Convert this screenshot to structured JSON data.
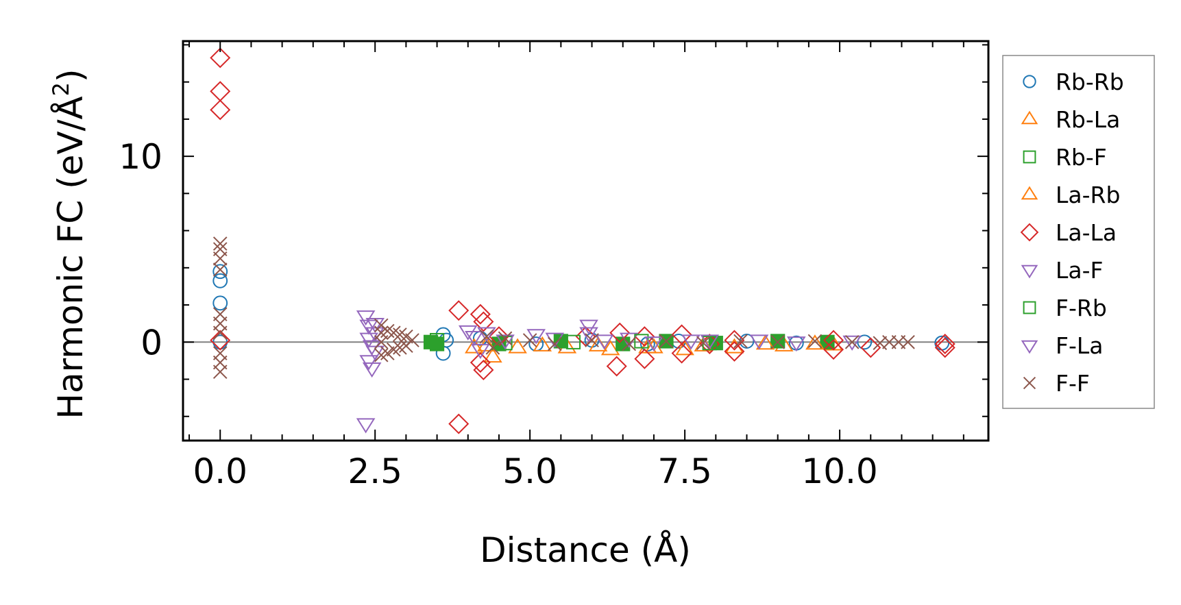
{
  "chart_data": {
    "type": "scatter",
    "xlabel": "Distance (Å)",
    "ylabel": "Harmonic FC (eV/Å²)",
    "ylabel_main": "Harmonic FC (eV/Å",
    "ylabel_sup": "2",
    "ylabel_close": ")",
    "xlim": [
      -0.6,
      12.4
    ],
    "ylim": [
      -5.3,
      16.2
    ],
    "xticks": [
      0.0,
      2.5,
      5.0,
      7.5,
      10.0
    ],
    "xtick_labels": [
      "0.0",
      "2.5",
      "5.0",
      "7.5",
      "10.0"
    ],
    "yticks": [
      0,
      10
    ],
    "ytick_labels": [
      "0",
      "10"
    ],
    "zero_line": true,
    "legend_position": "outside-right",
    "colors": {
      "blue": "#1f77b4",
      "orange": "#ff7f0e",
      "green": "#2ca02c",
      "red": "#d62728",
      "purple": "#9467bd",
      "brown": "#8c564b"
    },
    "series": [
      {
        "name": "Rb-Rb",
        "marker": "circle",
        "color": "#1f77b4",
        "points": [
          [
            0,
            3.8
          ],
          [
            0,
            3.3
          ],
          [
            0,
            2.1
          ],
          [
            0,
            0
          ],
          [
            3.6,
            0.4
          ],
          [
            3.6,
            -0.6
          ],
          [
            3.65,
            0.1
          ],
          [
            4.2,
            0.2
          ],
          [
            5.1,
            -0.1
          ],
          [
            6.0,
            0.1
          ],
          [
            6.9,
            -0.1
          ],
          [
            7.4,
            0.05
          ],
          [
            8.5,
            0.05
          ],
          [
            9.3,
            -0.05
          ],
          [
            10.4,
            0.0
          ],
          [
            11.65,
            -0.05
          ]
        ]
      },
      {
        "name": "Rb-La",
        "marker": "triangle-up",
        "color": "#ff7f0e",
        "points": [
          [
            4.1,
            -0.3
          ],
          [
            4.4,
            -0.8
          ],
          [
            4.8,
            -0.3
          ],
          [
            5.6,
            -0.3
          ],
          [
            6.3,
            -0.4
          ],
          [
            7.0,
            -0.3
          ],
          [
            7.5,
            -0.4
          ],
          [
            8.3,
            -0.3
          ],
          [
            9.1,
            -0.2
          ],
          [
            9.9,
            -0.15
          ]
        ]
      },
      {
        "name": "Rb-F",
        "marker": "square-filled",
        "color": "#2ca02c",
        "points": [
          [
            3.4,
            0.0
          ],
          [
            3.5,
            -0.1
          ],
          [
            4.5,
            -0.1
          ],
          [
            5.5,
            0.05
          ],
          [
            6.5,
            -0.1
          ],
          [
            7.2,
            0.05
          ],
          [
            8.0,
            -0.05
          ],
          [
            9.0,
            0.05
          ],
          [
            9.8,
            0.0
          ]
        ]
      },
      {
        "name": "La-Rb",
        "marker": "triangle-up",
        "color": "#ff7f0e",
        "points": [
          [
            4.3,
            -0.2
          ],
          [
            5.2,
            -0.2
          ],
          [
            6.1,
            -0.2
          ],
          [
            6.9,
            -0.3
          ],
          [
            7.8,
            -0.2
          ],
          [
            8.8,
            -0.1
          ],
          [
            9.6,
            -0.1
          ]
        ]
      },
      {
        "name": "La-La",
        "marker": "diamond",
        "color": "#d62728",
        "points": [
          [
            0,
            15.3
          ],
          [
            0,
            13.5
          ],
          [
            0,
            12.5
          ],
          [
            0,
            0.1
          ],
          [
            3.85,
            1.7
          ],
          [
            4.2,
            1.5
          ],
          [
            4.25,
            1.1
          ],
          [
            4.2,
            -1.1
          ],
          [
            4.25,
            -1.5
          ],
          [
            3.85,
            -4.4
          ],
          [
            4.5,
            0.3
          ],
          [
            5.9,
            0.3
          ],
          [
            6.45,
            0.5
          ],
          [
            6.4,
            -1.3
          ],
          [
            6.85,
            0.3
          ],
          [
            6.85,
            -0.9
          ],
          [
            7.45,
            0.4
          ],
          [
            7.45,
            -0.6
          ],
          [
            7.9,
            -0.1
          ],
          [
            8.3,
            -0.5
          ],
          [
            8.3,
            0.1
          ],
          [
            9.9,
            0.1
          ],
          [
            9.9,
            -0.4
          ],
          [
            10.5,
            -0.3
          ],
          [
            11.7,
            -0.1
          ],
          [
            11.7,
            -0.3
          ]
        ]
      },
      {
        "name": "La-F",
        "marker": "triangle-down",
        "color": "#9467bd",
        "points": [
          [
            2.35,
            1.4
          ],
          [
            2.4,
            0.9
          ],
          [
            2.4,
            -1.0
          ],
          [
            2.45,
            -1.4
          ],
          [
            2.5,
            0.5
          ],
          [
            2.5,
            -0.5
          ],
          [
            2.35,
            -4.4
          ],
          [
            4.0,
            0.6
          ],
          [
            4.1,
            0.3
          ],
          [
            4.3,
            0.5
          ],
          [
            5.1,
            0.4
          ],
          [
            5.95,
            0.9
          ],
          [
            5.95,
            0.5
          ],
          [
            6.6,
            0.2
          ],
          [
            7.6,
            0.1
          ],
          [
            8.7,
            0.1
          ]
        ]
      },
      {
        "name": "F-Rb",
        "marker": "square",
        "color": "#2ca02c",
        "points": [
          [
            3.5,
            0.1
          ],
          [
            4.6,
            -0.05
          ],
          [
            5.7,
            0.0
          ],
          [
            6.8,
            0.05
          ],
          [
            7.9,
            -0.05
          ]
        ]
      },
      {
        "name": "F-La",
        "marker": "triangle-down",
        "color": "#9467bd",
        "points": [
          [
            2.4,
            0.2
          ],
          [
            2.45,
            -0.2
          ],
          [
            2.5,
            1.0
          ],
          [
            4.2,
            -0.4
          ],
          [
            4.6,
            0.1
          ],
          [
            5.4,
            0.2
          ],
          [
            6.2,
            0.1
          ],
          [
            7.0,
            0.0
          ],
          [
            7.9,
            0.1
          ],
          [
            9.3,
            0.0
          ],
          [
            10.2,
            0.05
          ]
        ]
      },
      {
        "name": "F-F",
        "marker": "x",
        "color": "#8c564b",
        "points": [
          [
            0,
            5.3
          ],
          [
            0,
            5.0
          ],
          [
            0,
            4.5
          ],
          [
            0,
            3.9
          ],
          [
            0,
            1.5
          ],
          [
            0,
            1.0
          ],
          [
            0,
            0.5
          ],
          [
            0,
            -0.6
          ],
          [
            0,
            -1.1
          ],
          [
            0,
            -1.6
          ],
          [
            2.6,
            0.9
          ],
          [
            2.6,
            0.5
          ],
          [
            2.6,
            0.0
          ],
          [
            2.6,
            -0.7
          ],
          [
            2.7,
            0.6
          ],
          [
            2.7,
            -0.6
          ],
          [
            2.8,
            0.5
          ],
          [
            2.8,
            -0.4
          ],
          [
            2.9,
            0.4
          ],
          [
            2.9,
            -0.3
          ],
          [
            3.0,
            0.3
          ],
          [
            3.0,
            -0.2
          ],
          [
            3.1,
            0.1
          ],
          [
            4.3,
            0.3
          ],
          [
            4.4,
            -0.3
          ],
          [
            4.6,
            0.2
          ],
          [
            5.0,
            0.1
          ],
          [
            5.4,
            -0.1
          ],
          [
            6.0,
            0.1
          ],
          [
            6.6,
            -0.1
          ],
          [
            7.2,
            0.05
          ],
          [
            7.8,
            -0.05
          ],
          [
            8.4,
            0.05
          ],
          [
            9.0,
            0.0
          ],
          [
            9.6,
            0.05
          ],
          [
            10.2,
            0.0
          ],
          [
            10.65,
            -0.05
          ],
          [
            10.8,
            0.0
          ],
          [
            10.95,
            0.0
          ],
          [
            11.1,
            0.0
          ]
        ]
      }
    ]
  }
}
